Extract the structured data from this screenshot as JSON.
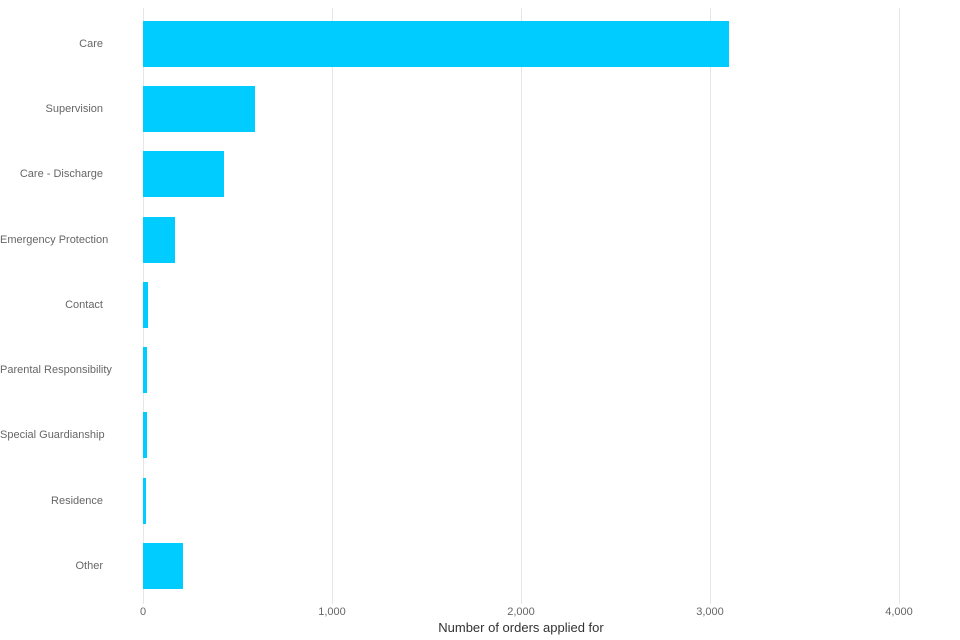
{
  "chart_data": {
    "type": "bar",
    "orientation": "horizontal",
    "categories": [
      "Care",
      "Supervision",
      "Care - Discharge",
      "Emergency Protection",
      "Contact",
      "Parental Responsibility",
      "Special Guardianship",
      "Residence",
      "Other"
    ],
    "values": [
      3100,
      590,
      430,
      170,
      25,
      20,
      20,
      18,
      210
    ],
    "title": "",
    "xlabel": "Number of orders applied for",
    "ylabel": "",
    "xlim": [
      0,
      4320
    ],
    "x_ticks": [
      {
        "value": 0,
        "label": "0"
      },
      {
        "value": 1000,
        "label": "1,000"
      },
      {
        "value": 2000,
        "label": "2,000"
      },
      {
        "value": 3000,
        "label": "3,000"
      },
      {
        "value": 4000,
        "label": "4,000"
      }
    ],
    "grid": "vertical",
    "legend": "none",
    "colors": {
      "bar": "#00ccff",
      "gridline": "#e6e6e6",
      "tick_text": "#666666",
      "axis_title_text": "#333333",
      "background": "#ffffff"
    }
  }
}
